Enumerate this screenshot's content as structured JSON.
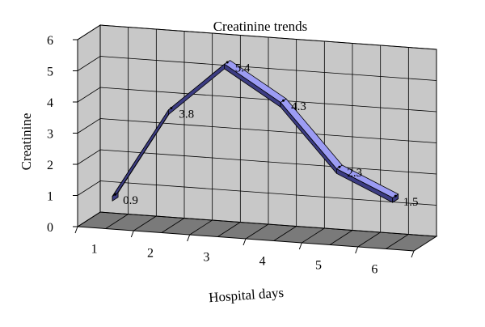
{
  "chart_data": {
    "type": "line",
    "title": "Creatinine trends",
    "xlabel": "Hospital days",
    "ylabel": "Creatinine",
    "categories": [
      "1",
      "2",
      "3",
      "4",
      "5",
      "6"
    ],
    "series": [
      {
        "values": [
          0.9,
          3.8,
          5.4,
          4.3,
          2.3,
          1.5
        ]
      }
    ],
    "data_labels": [
      "0.9",
      "3.8",
      "5.4",
      "4.3",
      "2.3",
      "1.5"
    ],
    "yticks": [
      "0",
      "1",
      "2",
      "3",
      "4",
      "5",
      "6"
    ],
    "ylim": [
      0,
      6
    ],
    "grid": true,
    "legend": "none",
    "style": "3d-line",
    "colors": {
      "ribbon_top": "#9C9CF4",
      "ribbon_side": "#3C3C82",
      "wall": "#C8C8C8",
      "floor": "#7A7A7A",
      "gridline": "#000000"
    }
  }
}
